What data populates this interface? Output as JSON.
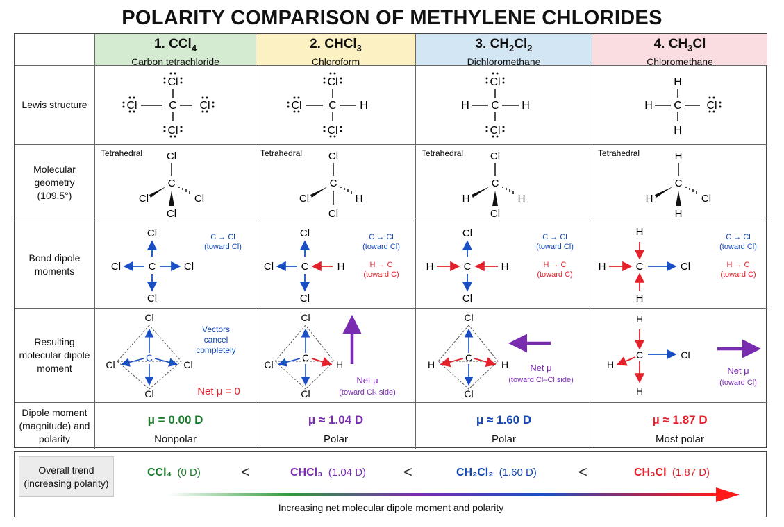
{
  "title": "POLARITY COMPARISON OF METHYLENE CHLORIDES",
  "columns": [
    {
      "num_prefix": "1. CCl",
      "num_sub": "4",
      "num_suffix": "",
      "name": "Carbon tetrachloride"
    },
    {
      "num_prefix": "2. CHCl",
      "num_sub": "3",
      "num_suffix": "",
      "name": "Chloroform"
    },
    {
      "num_prefix": "3. CH",
      "num_sub": "2",
      "num_suffix": "Cl",
      "num_sub2": "2",
      "name": "Dichloromethane"
    },
    {
      "num_prefix": "4. CH",
      "num_sub": "3",
      "num_suffix": "Cl",
      "name": "Chloromethane"
    }
  ],
  "row_labels": {
    "lewis": "Lewis structure",
    "geometry": "Molecular geometry (109.5°)",
    "bond_dipole": "Bond dipole moments",
    "resulting": "Resulting molecular dipole moment",
    "dipole_moment": "Dipole moment (magnitude) and polarity"
  },
  "atoms": {
    "cl": "Cl",
    "c": "C",
    "h": "H"
  },
  "geometry_label": "Tetrahedral",
  "bond_notes": {
    "ccl": "C → Cl",
    "ccl_sub": "(toward Cl)",
    "hc": "H → C",
    "hc_sub": "(toward C)"
  },
  "resulting_notes": {
    "col1_cancel": [
      "Vectors",
      "cancel",
      "completely"
    ],
    "col1_net": "Net μ = 0",
    "net_mu": "Net μ",
    "col2_dir": "(toward Cl₃ side)",
    "col3_dir": "(toward Cl–Cl side)",
    "col4_dir": "(toward Cl)"
  },
  "dipoles": [
    {
      "value": "μ = 0.00 D",
      "polarity": "Nonpolar",
      "color": "#1a7d2c"
    },
    {
      "value": "μ ≈ 1.04 D",
      "polarity": "Polar",
      "color": "#7a2cb0"
    },
    {
      "value": "μ ≈ 1.60 D",
      "polarity": "Polar",
      "color": "#1248b5"
    },
    {
      "value": "μ ≈ 1.87 D",
      "polarity": "Most polar",
      "color": "#e4202a"
    }
  ],
  "trend": {
    "label": "Overall trend (increasing polarity)",
    "items": [
      {
        "formula": "CCl₄",
        "value": "(0 D)"
      },
      {
        "formula": "CHCl₃",
        "value": "(1.04 D)"
      },
      {
        "formula": "CH₂Cl₂",
        "value": "(1.60 D)"
      },
      {
        "formula": "CH₃Cl",
        "value": "(1.87 D)"
      }
    ],
    "separator": "<",
    "caption": "Increasing net molecular dipole moment and polarity"
  },
  "colors": {
    "blue_arrow": "#1a4fc4",
    "red_arrow": "#e4202a",
    "purple_arrow": "#7a2cb0"
  }
}
